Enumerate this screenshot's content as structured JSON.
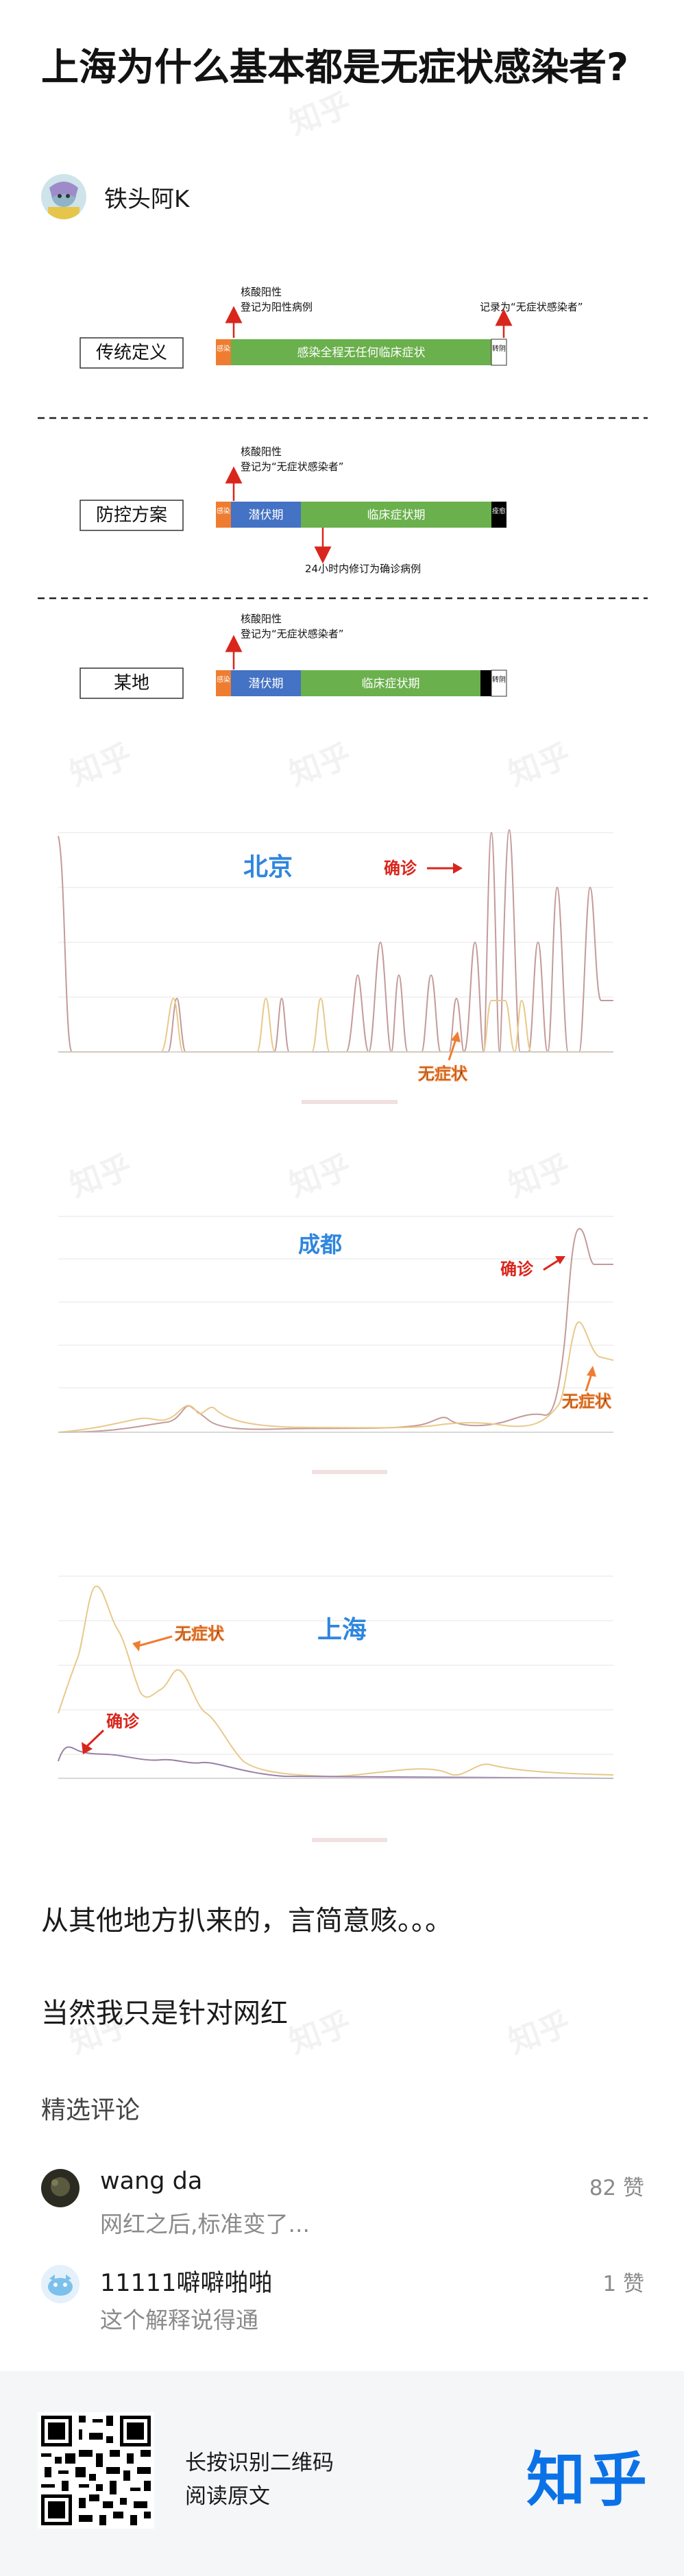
{
  "article": {
    "title": "上海为什么基本都是无症状感染者?",
    "author": "铁头阿K",
    "paragraphs": [
      "从其他地方扒来的，言简意赅。。。",
      "当然我只是针对网红"
    ]
  },
  "definitions": [
    {
      "label": "传统定义",
      "top_note_1": "核酸阳性",
      "top_note_2": "登记为阳性病例",
      "right_note": "记录为“无症状感染者”",
      "seg_start": "感染",
      "seg_main": "感染全程无任何临床症状",
      "seg_end": "转阴"
    },
    {
      "label": "防控方案",
      "top_note_1": "核酸阳性",
      "top_note_2": "登记为“无症状感染者”",
      "bottom_note": "24小时内修订为确诊病例",
      "seg_start": "感染",
      "seg_latent": "潜伏期",
      "seg_main": "临床症状期",
      "seg_end": "痊愈"
    },
    {
      "label": "某地",
      "top_note_1": "核酸阳性",
      "top_note_2": "登记为“无症状感染者”",
      "seg_start": "感染",
      "seg_latent": "潜伏期",
      "seg_main": "临床症状期",
      "seg_end": "转阴"
    }
  ],
  "charts": [
    {
      "city": "北京",
      "label_confirmed": "确诊",
      "label_asym": "无症状"
    },
    {
      "city": "成都",
      "label_confirmed": "确诊",
      "label_asym": "无症状"
    },
    {
      "city": "上海",
      "label_confirmed": "确诊",
      "label_asym": "无症状"
    }
  ],
  "comments_section": {
    "title": "精选评论",
    "items": [
      {
        "name": "wang da",
        "text": "网红之后,标准变了...",
        "likes": "82 赞"
      },
      {
        "name": "11111噼噼啪啪",
        "text": "这个解释说得通",
        "likes": "1 赞"
      }
    ]
  },
  "footer": {
    "line1": "长按识别二维码",
    "line2": "阅读原文",
    "logo": "知乎"
  },
  "watermark": "知乎",
  "colors": {
    "orange": "#ef7d31",
    "green": "#6ab04c",
    "blue": "#4472c4",
    "black": "#000000",
    "red": "#d9261c",
    "city_blue": "#2e86de",
    "confirmed_line": "#c49a9a",
    "asym_line": "#e8c98a",
    "zhihu_blue": "#0a72e6"
  }
}
